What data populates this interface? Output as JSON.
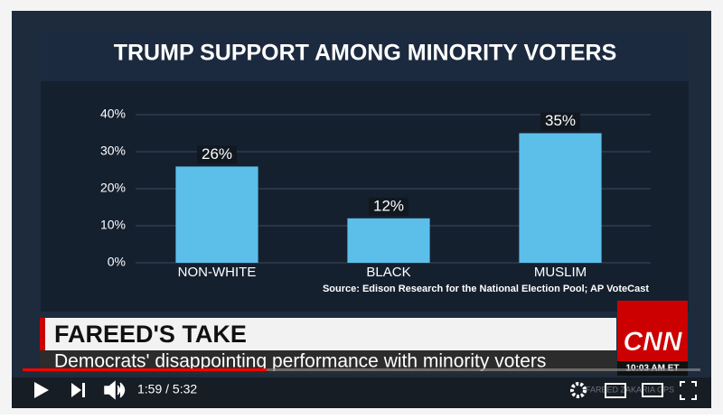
{
  "chart_data": {
    "type": "bar",
    "title": "TRUMP SUPPORT AMONG MINORITY VOTERS",
    "categories": [
      "NON-WHITE",
      "BLACK",
      "MUSLIM"
    ],
    "values": [
      26,
      12,
      35
    ],
    "value_labels": [
      "26%",
      "12%",
      "35%"
    ],
    "color": "#5cbfea",
    "ylim": [
      0,
      40
    ],
    "yticks": [
      {
        "value": 0,
        "label": "0%"
      },
      {
        "value": 10,
        "label": "10%"
      },
      {
        "value": 20,
        "label": "20%"
      },
      {
        "value": 30,
        "label": "30%"
      },
      {
        "value": 40,
        "label": "40%"
      }
    ],
    "grid": true,
    "source": "Source: Edison Research for the National Election Pool; AP VoteCast"
  },
  "lower_third": {
    "headline": "FAREED'S TAKE",
    "subheadline": "Democrats' disappointing performance with minority voters"
  },
  "network": {
    "logo": "CNN",
    "time": "10:03 AM ET"
  },
  "player": {
    "time": "1:59 / 5:32",
    "watermark": "FAREED ZAKARIA GPS"
  }
}
